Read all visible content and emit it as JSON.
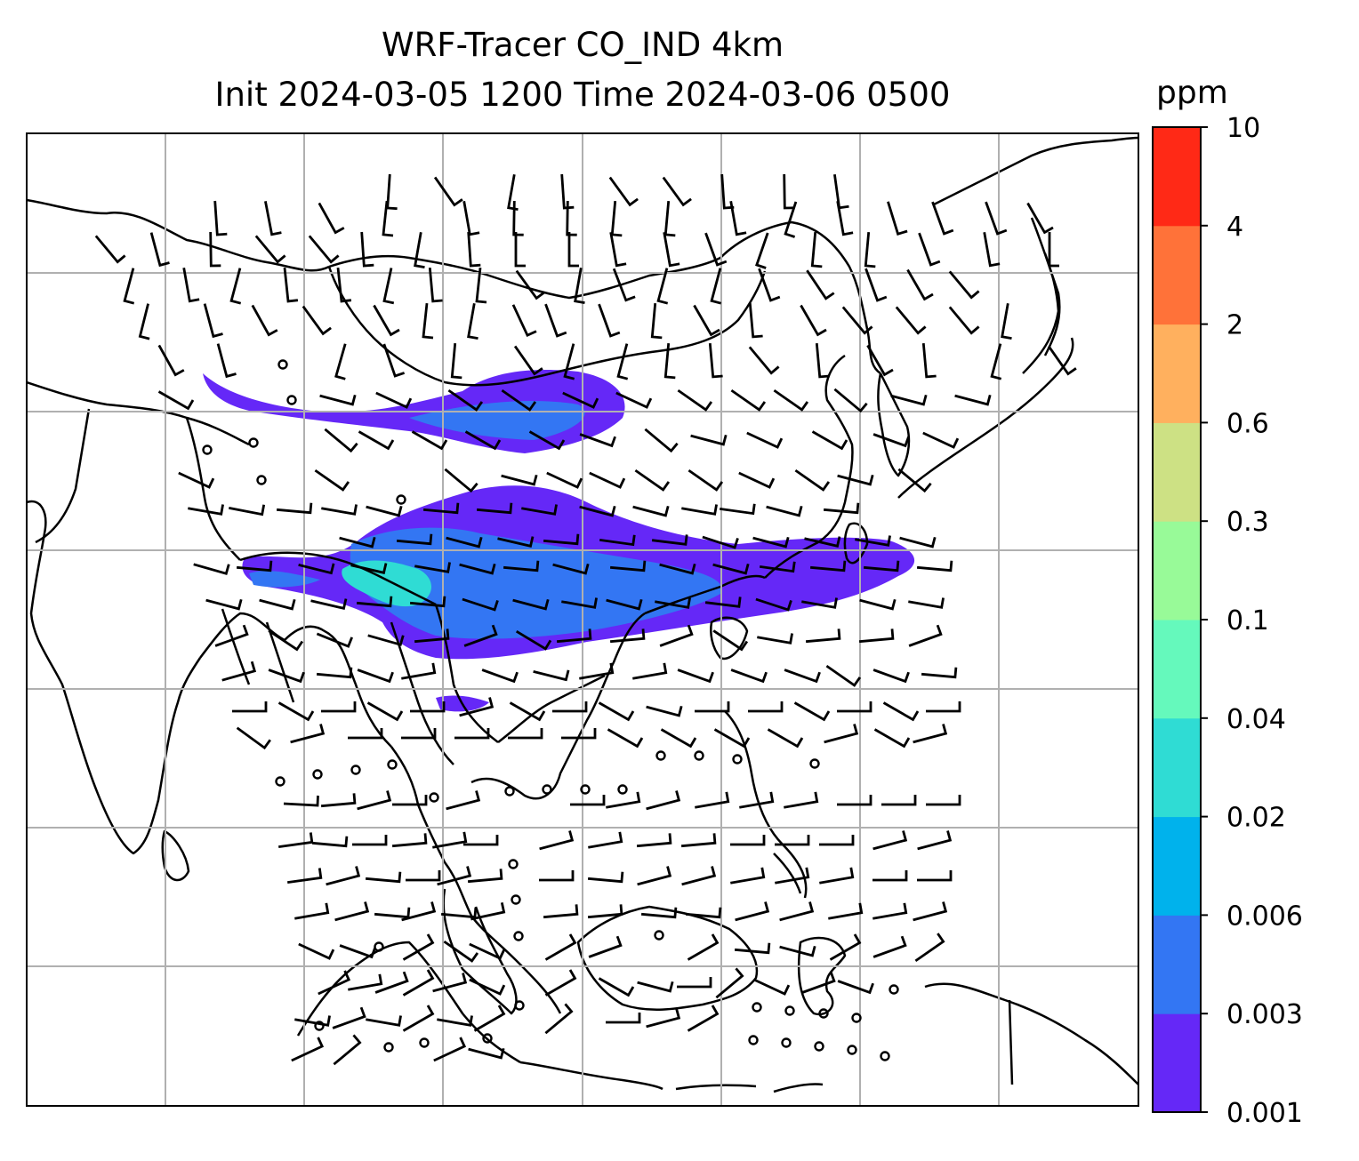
{
  "figure": {
    "title_line1": "WRF-Tracer CO_IND 4km",
    "title_line2": "Init 2024-03-05 1200 Time 2024-03-06 0500"
  },
  "colorbar": {
    "unit": "ppm",
    "levels": [
      "0.001",
      "0.003",
      "0.006",
      "0.02",
      "0.04",
      "0.1",
      "0.3",
      "0.6",
      "2",
      "4",
      "10"
    ],
    "colors": [
      "#6528f7",
      "#3376f3",
      "#00b2ec",
      "#2fdcd4",
      "#65f9bc",
      "#98fa98",
      "#cde184",
      "#ffb05e",
      "#ff7239",
      "#ff2916"
    ]
  },
  "map": {
    "gridlines": true,
    "coastlines": true,
    "wind_barbs": true,
    "plume_colors": {
      "outer": "#6528f7",
      "mid": "#3376f3",
      "core": "#2fdcd4"
    }
  }
}
